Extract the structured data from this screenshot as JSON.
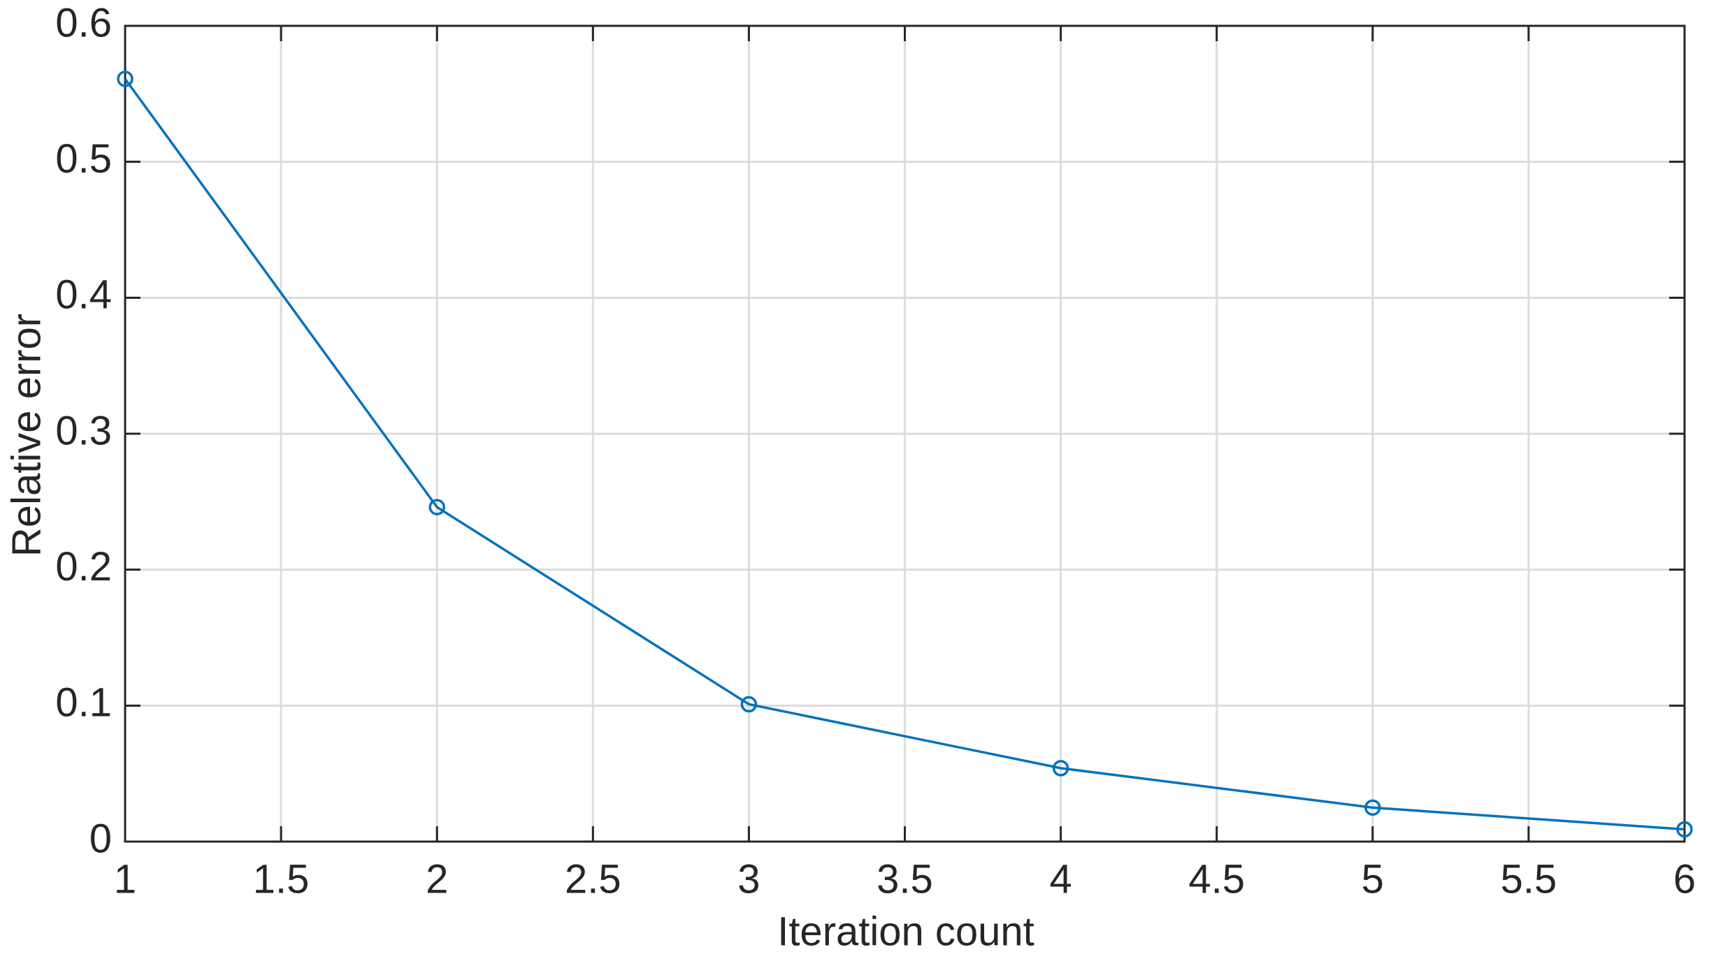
{
  "chart_data": {
    "type": "line",
    "x": [
      1,
      2,
      3,
      4,
      5,
      6
    ],
    "series": [
      {
        "name": "Relative error",
        "color": "#0072bd",
        "values": [
          0.561,
          0.246,
          0.101,
          0.054,
          0.025,
          0.009
        ]
      }
    ],
    "xlabel": "Iteration count",
    "ylabel": "Relative error",
    "xlim": [
      1,
      6
    ],
    "xticks": [
      1,
      1.5,
      2,
      2.5,
      3,
      3.5,
      4,
      4.5,
      5,
      5.5,
      6
    ],
    "ylim": [
      0,
      0.6
    ],
    "yticks": [
      0,
      0.1,
      0.2,
      0.3,
      0.4,
      0.5,
      0.6
    ],
    "grid": true,
    "markers": "circle"
  }
}
